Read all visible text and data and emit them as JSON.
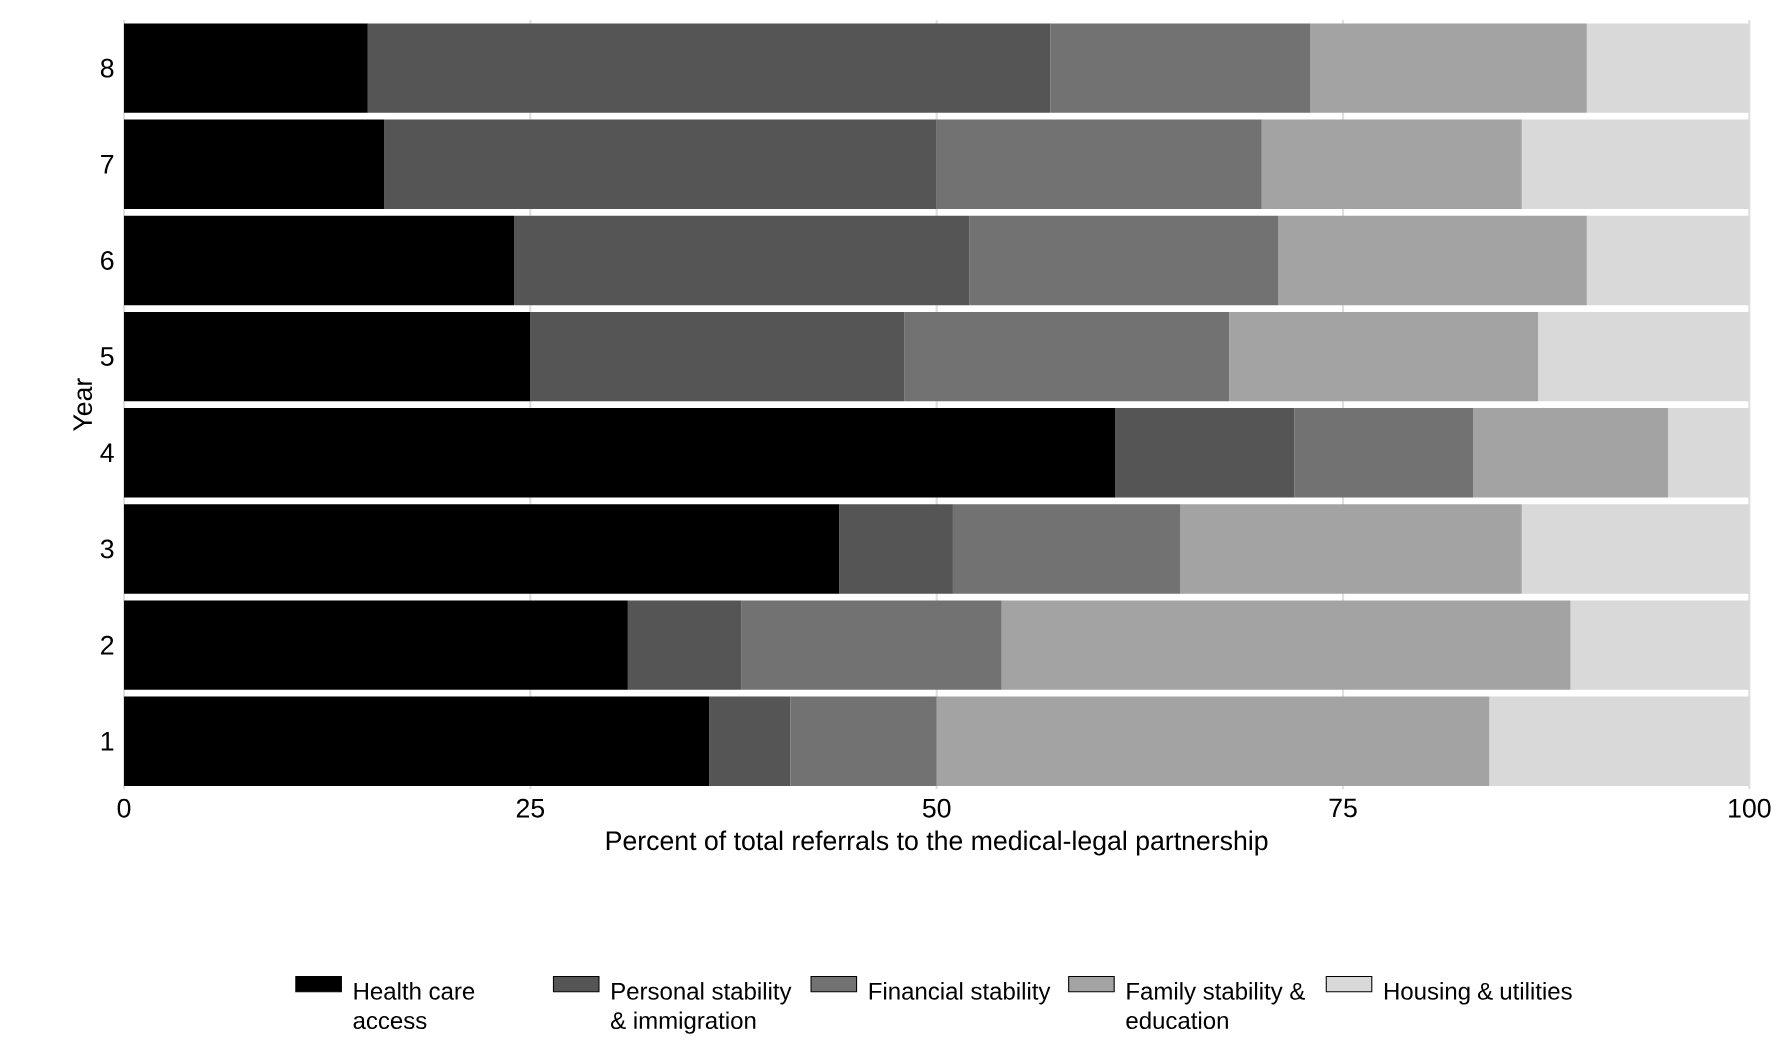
{
  "chart_data": {
    "type": "bar",
    "orientation": "horizontal",
    "stacked": true,
    "xlabel": "Percent of total referrals to the medical-legal partnership",
    "ylabel": "Year",
    "categories": [
      "8",
      "7",
      "6",
      "5",
      "4",
      "3",
      "2",
      "1"
    ],
    "series": [
      {
        "name": "Health care access",
        "color": "#000000",
        "values": [
          15,
          16,
          24,
          25,
          61,
          44,
          31,
          36
        ]
      },
      {
        "name": "Personal stability & immigration",
        "color": "#555555",
        "values": [
          42,
          34,
          28,
          23,
          11,
          7,
          7,
          5
        ]
      },
      {
        "name": "Financial stability",
        "color": "#727272",
        "values": [
          16,
          20,
          19,
          20,
          11,
          14,
          16,
          9
        ]
      },
      {
        "name": "Family stability & education",
        "color": "#a3a3a3",
        "values": [
          17,
          16,
          19,
          19,
          12,
          21,
          35,
          34
        ]
      },
      {
        "name": "Housing & utilities",
        "color": "#d9d9d9",
        "values": [
          10,
          14,
          10,
          13,
          5,
          14,
          11,
          16
        ]
      }
    ],
    "xlim": [
      0,
      100
    ],
    "xticks": [
      0,
      25,
      50,
      75,
      100
    ],
    "grid": "x",
    "legend": "bottom"
  }
}
